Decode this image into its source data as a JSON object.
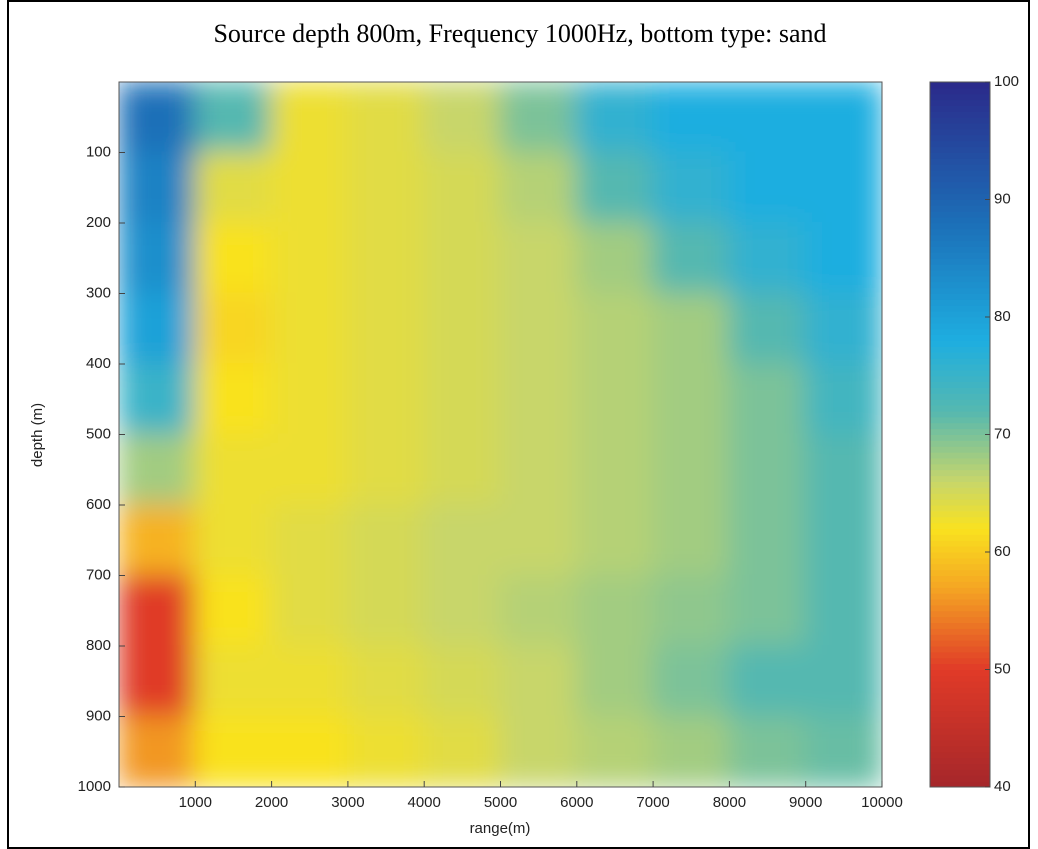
{
  "chart_data": {
    "type": "heatmap",
    "title": "Source depth 800m,  Frequency 1000Hz, bottom type: sand",
    "xlabel": "range(m)",
    "ylabel": "depth (m)",
    "xlim": [
      0,
      10000
    ],
    "xticks": [
      1000,
      2000,
      3000,
      4000,
      5000,
      6000,
      7000,
      8000,
      9000,
      10000
    ],
    "ylim": [
      0,
      1000
    ],
    "yticks": [
      100,
      200,
      300,
      400,
      500,
      600,
      700,
      800,
      900,
      1000
    ],
    "y_inverted": true,
    "x_edges": [
      0,
      1000,
      2000,
      3000,
      4000,
      5000,
      6000,
      7000,
      8000,
      9000,
      10000
    ],
    "y_edges": [
      0,
      100,
      200,
      300,
      400,
      500,
      600,
      700,
      800,
      900,
      1000
    ],
    "z": [
      [
        88,
        72,
        63,
        64,
        66,
        70,
        76,
        78,
        78,
        78
      ],
      [
        85,
        64,
        63,
        64,
        65,
        67,
        72,
        76,
        78,
        78
      ],
      [
        83,
        62,
        63,
        64,
        65,
        66,
        68,
        72,
        76,
        78
      ],
      [
        80,
        61,
        63,
        64,
        65,
        66,
        67,
        68,
        72,
        76
      ],
      [
        75,
        62,
        63,
        64,
        65,
        66,
        67,
        68,
        70,
        74
      ],
      [
        68,
        63,
        63,
        64,
        65,
        66,
        67,
        68,
        70,
        72
      ],
      [
        58,
        63,
        64,
        65,
        66,
        66,
        67,
        68,
        70,
        72
      ],
      [
        50,
        62,
        64,
        65,
        66,
        67,
        68,
        69,
        70,
        72
      ],
      [
        50,
        63,
        63,
        64,
        65,
        66,
        68,
        70,
        72,
        72
      ],
      [
        56,
        62,
        62,
        63,
        64,
        66,
        67,
        68,
        70,
        71
      ]
    ],
    "clim": [
      40,
      100
    ],
    "cticks": [
      40,
      50,
      60,
      70,
      80,
      90,
      100
    ],
    "colormap": [
      {
        "value": 40,
        "color": "#a5262a"
      },
      {
        "value": 50,
        "color": "#e03a28"
      },
      {
        "value": 57,
        "color": "#f5a623"
      },
      {
        "value": 62,
        "color": "#f9e21f"
      },
      {
        "value": 66,
        "color": "#c8d66a"
      },
      {
        "value": 72,
        "color": "#55b8b0"
      },
      {
        "value": 78,
        "color": "#1eaee0"
      },
      {
        "value": 88,
        "color": "#1c6fb8"
      },
      {
        "value": 100,
        "color": "#2b2a8a"
      }
    ]
  }
}
